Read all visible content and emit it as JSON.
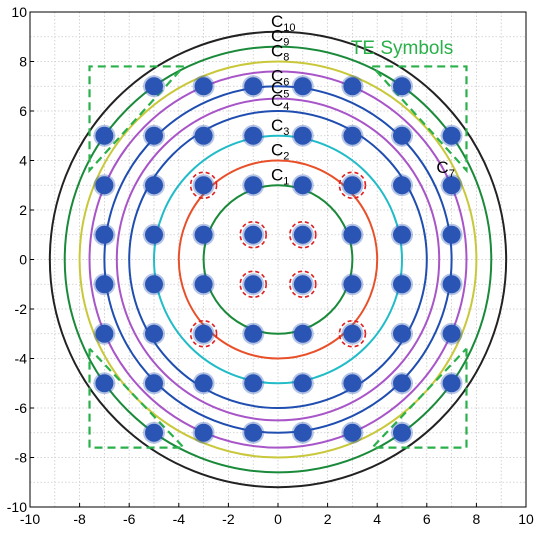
{
  "chart_data": {
    "type": "scatter",
    "title": "",
    "xlabel": "",
    "ylabel": "",
    "xlim": [
      -10,
      10
    ],
    "ylim": [
      -10,
      10
    ],
    "xticks": [
      -10,
      -8,
      -6,
      -4,
      -2,
      0,
      2,
      4,
      6,
      8,
      10
    ],
    "yticks": [
      -10,
      -8,
      -6,
      -4,
      -2,
      0,
      2,
      4,
      6,
      8,
      10
    ],
    "grid": true,
    "constellation": {
      "levels": [
        -7,
        -5,
        -3,
        -1,
        1,
        3,
        5,
        7
      ],
      "color": "#2a55b5",
      "excluded_corners": [
        [
          -7,
          7
        ],
        [
          7,
          7
        ],
        [
          -7,
          -7
        ],
        [
          7,
          -7
        ]
      ],
      "highlighted_points": [
        [
          -1,
          1
        ],
        [
          1,
          1
        ],
        [
          -1,
          -1
        ],
        [
          1,
          -1
        ],
        [
          -3,
          3
        ],
        [
          3,
          3
        ],
        [
          -3,
          -3
        ],
        [
          3,
          -3
        ]
      ],
      "highlight_color": "#e02020"
    },
    "circles": [
      {
        "label": "C",
        "sub": "1",
        "radius": 3.0,
        "color": "#1a8a3a"
      },
      {
        "label": "C",
        "sub": "2",
        "radius": 4.0,
        "color": "#e8502a"
      },
      {
        "label": "C",
        "sub": "3",
        "radius": 5.0,
        "color": "#22bcc8"
      },
      {
        "label": "C",
        "sub": "4",
        "radius": 6.0,
        "color": "#1f4eb0"
      },
      {
        "label": "C",
        "sub": "5",
        "radius": 6.5,
        "color": "#a855c8"
      },
      {
        "label": "C",
        "sub": "6",
        "radius": 7.0,
        "color": "#1f4eb0"
      },
      {
        "label": "C",
        "sub": "7",
        "radius": 7.6,
        "color": "#a855c8"
      },
      {
        "label": "C",
        "sub": "8",
        "radius": 8.0,
        "color": "#c8c83a"
      },
      {
        "label": "C",
        "sub": "9",
        "radius": 8.6,
        "color": "#1a8a3a"
      },
      {
        "label": "C",
        "sub": "10",
        "radius": 9.2,
        "color": "#222222"
      }
    ],
    "te_region": {
      "label": "TE Symbols",
      "color": "#2ab04a",
      "corner_boxes": [
        {
          "corner": "top-left",
          "x": [
            -7.6,
            -3.8
          ],
          "y": [
            3.6,
            7.8
          ]
        },
        {
          "corner": "top-right",
          "x": [
            3.8,
            7.6
          ],
          "y": [
            3.6,
            7.8
          ]
        },
        {
          "corner": "bottom-left",
          "x": [
            -7.6,
            -3.8
          ],
          "y": [
            -7.6,
            -3.6
          ]
        },
        {
          "corner": "bottom-right",
          "x": [
            3.8,
            7.6
          ],
          "y": [
            -7.6,
            -3.6
          ]
        }
      ]
    }
  }
}
